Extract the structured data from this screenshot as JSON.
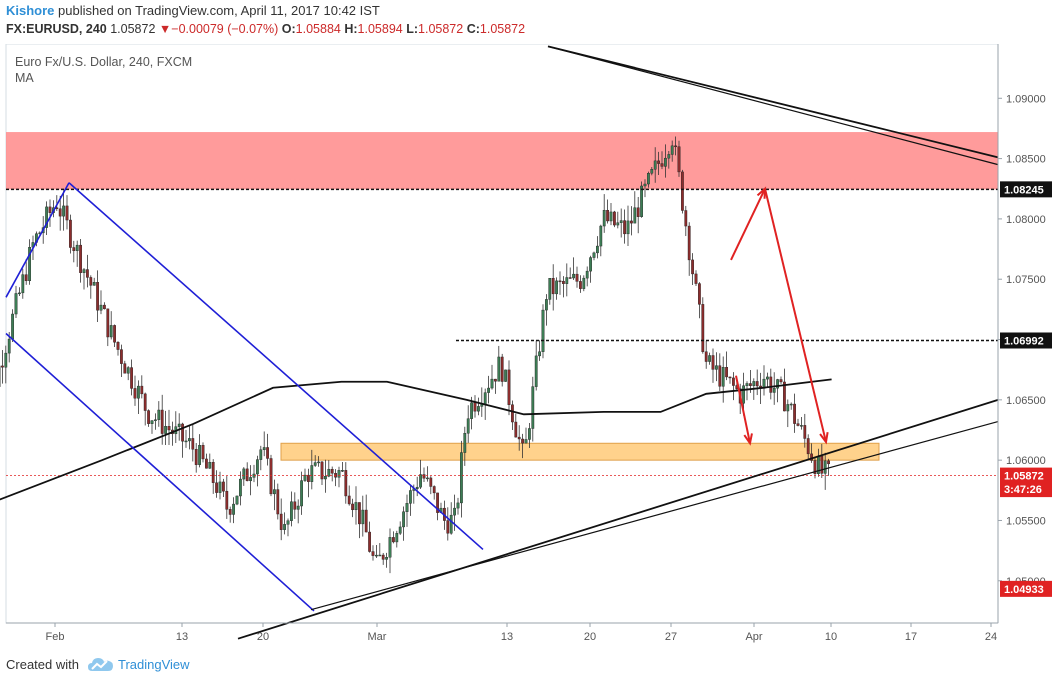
{
  "header": {
    "author": "Kishore",
    "published_text": "published on TradingView.com, April 11, 2017 10:42 IST",
    "symbol": "FX:EURUSD, 240",
    "last": "1.05872",
    "change": "▼",
    "change_text": "−0.00079 (−0.07%)",
    "o_label": "O:",
    "o_value": "1.05884",
    "h_label": "H:",
    "h_value": "1.05894",
    "l_label": "L:",
    "l_value": "1.05872",
    "c_label": "C:",
    "c_value": "1.05872"
  },
  "legend": {
    "title": "Euro Fx/U.S. Dollar, 240, FXCM",
    "indicator": "MA"
  },
  "footer": {
    "created_with": "Created with",
    "brand": "TradingView"
  },
  "colors": {
    "up": "#3d7d55",
    "down": "#8c2d2d",
    "resistance_zone": "#ff8a8a",
    "support_zone": "#ffd28c",
    "channel": "#1f1fd6",
    "arrows": "#e02222",
    "trendline": "#111111",
    "price_tag": "#e02222"
  },
  "chart_data": {
    "type": "candlestick",
    "instrument": "EURUSD",
    "timeframe": "240",
    "ylim": [
      1.0465,
      1.0945
    ],
    "y_ticks": [
      "1.09000",
      "1.08500",
      "1.08000",
      "1.07500",
      "1.07000",
      "1.06500",
      "1.06000",
      "1.05500",
      "1.05000"
    ],
    "x_ticks": [
      "Feb",
      "13",
      "20",
      "Mar",
      "13",
      "20",
      "27",
      "Apr",
      "10",
      "17",
      "24"
    ],
    "price_labels": [
      {
        "text": "1.08245",
        "value": 1.08245,
        "style": "dark"
      },
      {
        "text": "1.06992",
        "value": 1.06992,
        "style": "dark"
      },
      {
        "text": "1.05872",
        "value": 1.05872,
        "style": "red"
      },
      {
        "text": "3:47:26",
        "value": 1.0576,
        "style": "red-timer"
      },
      {
        "text": "1.04933",
        "value": 1.04933,
        "style": "red"
      }
    ],
    "levels": [
      {
        "name": "resistance-zone",
        "from": 1.08245,
        "to": 1.0872
      },
      {
        "name": "support-zone",
        "from": 1.06,
        "to": 1.0614
      },
      {
        "name": "resistance-level",
        "value": 1.06992
      },
      {
        "name": "last-price",
        "value": 1.05872
      }
    ],
    "swing_path": [
      {
        "date": "2017-01-26",
        "close": 1.061
      },
      {
        "date": "2017-01-31",
        "close": 1.078
      },
      {
        "date": "2017-02-02",
        "close": 1.0815
      },
      {
        "date": "2017-02-07",
        "close": 1.07
      },
      {
        "date": "2017-02-10",
        "close": 1.064
      },
      {
        "date": "2017-02-14",
        "close": 1.061
      },
      {
        "date": "2017-02-16",
        "close": 1.058
      },
      {
        "date": "2017-02-17",
        "close": 1.056
      },
      {
        "date": "2017-02-20",
        "close": 1.061
      },
      {
        "date": "2017-02-22",
        "close": 1.054
      },
      {
        "date": "2017-02-24",
        "close": 1.059
      },
      {
        "date": "2017-02-27",
        "close": 1.059
      },
      {
        "date": "2017-03-01",
        "close": 1.0545
      },
      {
        "date": "2017-03-02",
        "close": 1.051
      },
      {
        "date": "2017-03-06",
        "close": 1.059
      },
      {
        "date": "2017-03-08",
        "close": 1.055
      },
      {
        "date": "2017-03-09",
        "close": 1.055
      },
      {
        "date": "2017-03-10",
        "close": 1.064
      },
      {
        "date": "2017-03-13",
        "close": 1.068
      },
      {
        "date": "2017-03-15",
        "close": 1.06
      },
      {
        "date": "2017-03-17",
        "close": 1.074
      },
      {
        "date": "2017-03-20",
        "close": 1.075
      },
      {
        "date": "2017-03-22",
        "close": 1.08
      },
      {
        "date": "2017-03-24",
        "close": 1.079
      },
      {
        "date": "2017-03-27",
        "close": 1.085
      },
      {
        "date": "2017-03-28",
        "close": 1.087
      },
      {
        "date": "2017-03-29",
        "close": 1.081
      },
      {
        "date": "2017-03-31",
        "close": 1.068
      },
      {
        "date": "2017-04-03",
        "close": 1.0655
      },
      {
        "date": "2017-04-05",
        "close": 1.067
      },
      {
        "date": "2017-04-07",
        "close": 1.065
      },
      {
        "date": "2017-04-10",
        "close": 1.059
      },
      {
        "date": "2017-04-11",
        "close": 1.0587
      }
    ],
    "moving_average": [
      {
        "date": "2017-01-26",
        "value": 1.056
      },
      {
        "date": "2017-02-06",
        "value": 1.06
      },
      {
        "date": "2017-02-14",
        "value": 1.063
      },
      {
        "date": "2017-02-21",
        "value": 1.066
      },
      {
        "date": "2017-02-27",
        "value": 1.0665
      },
      {
        "date": "2017-03-03",
        "value": 1.0665
      },
      {
        "date": "2017-03-10",
        "value": 1.065
      },
      {
        "date": "2017-03-15",
        "value": 1.0638
      },
      {
        "date": "2017-03-22",
        "value": 1.064
      },
      {
        "date": "2017-03-27",
        "value": 1.064
      },
      {
        "date": "2017-03-31",
        "value": 1.0655
      },
      {
        "date": "2017-04-05",
        "value": 1.066
      },
      {
        "date": "2017-04-11",
        "value": 1.0667
      }
    ]
  }
}
